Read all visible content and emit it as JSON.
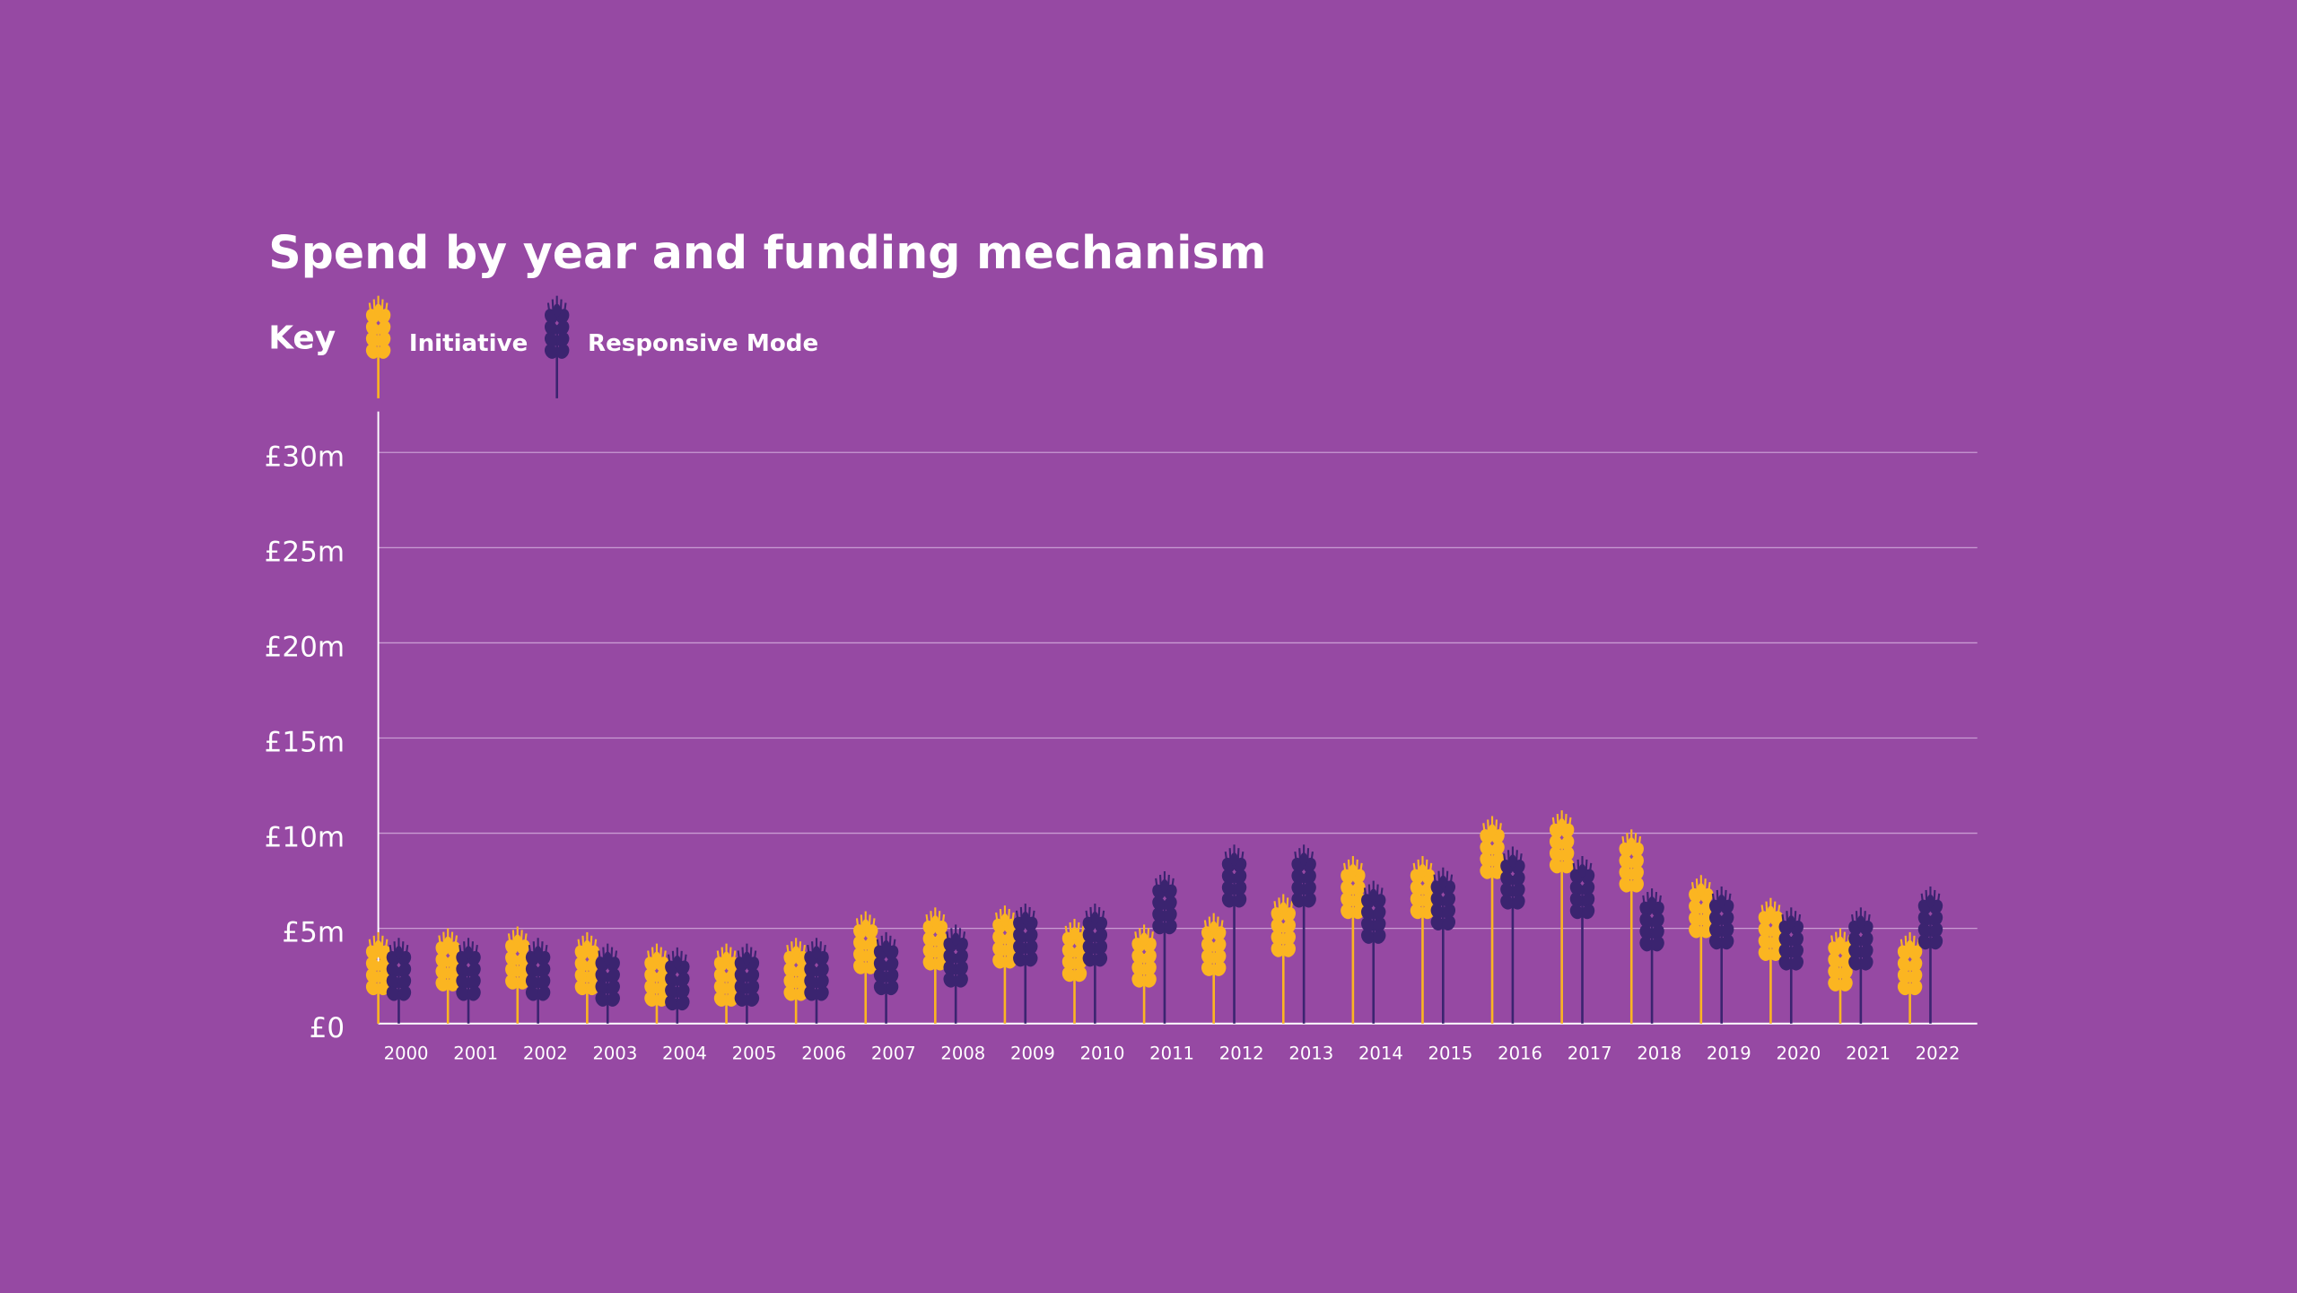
{
  "chart_data": {
    "type": "pictogram-bar",
    "title": "Spend by year and funding mechanism",
    "legend_title": "Key",
    "categories": [
      "2000",
      "2001",
      "2002",
      "2003",
      "2004",
      "2005",
      "2006",
      "2007",
      "2008",
      "2009",
      "2010",
      "2011",
      "2012",
      "2013",
      "2014",
      "2015",
      "2016",
      "2017",
      "2018",
      "2019",
      "2020",
      "2021",
      "2022"
    ],
    "series": [
      {
        "name": "Initiative",
        "color": "#fbb521",
        "values": [
          4.8,
          5.0,
          5.1,
          4.8,
          4.2,
          4.2,
          4.5,
          5.9,
          6.1,
          6.2,
          5.5,
          5.2,
          5.8,
          6.8,
          8.8,
          8.8,
          10.9,
          11.2,
          10.2,
          7.8,
          6.6,
          5.0,
          4.8
        ]
      },
      {
        "name": "Responsive Mode",
        "color": "#3b2470",
        "values": [
          4.5,
          4.5,
          4.5,
          4.2,
          4.0,
          4.2,
          4.5,
          4.8,
          5.2,
          6.3,
          6.3,
          8.0,
          9.4,
          9.4,
          7.5,
          8.2,
          9.3,
          8.8,
          7.1,
          7.2,
          6.1,
          6.1,
          7.2
        ]
      }
    ],
    "ylim": [
      0,
      30
    ],
    "yticks": [
      {
        "value": 0,
        "label": "£0"
      },
      {
        "value": 5,
        "label": "£5m"
      },
      {
        "value": 10,
        "label": "£10m"
      },
      {
        "value": 15,
        "label": "£15m"
      },
      {
        "value": 20,
        "label": "£20m"
      },
      {
        "value": 25,
        "label": "£25m"
      },
      {
        "value": 30,
        "label": "£30m"
      }
    ],
    "grid": true
  }
}
